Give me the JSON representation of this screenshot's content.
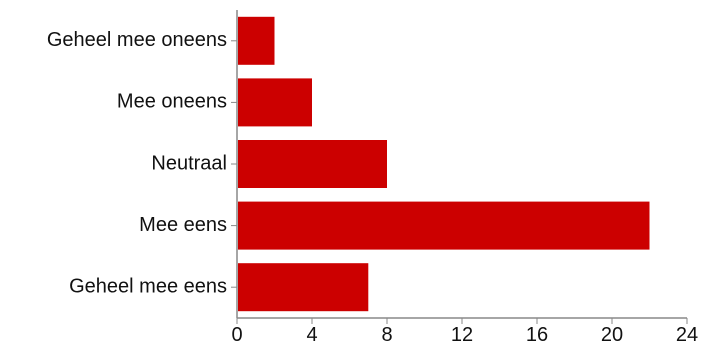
{
  "chart_data": {
    "type": "bar",
    "orientation": "horizontal",
    "categories": [
      "Geheel mee oneens",
      "Mee oneens",
      "Neutraal",
      "Mee eens",
      "Geheel mee eens"
    ],
    "values": [
      2,
      4,
      8,
      22,
      7
    ],
    "xlim": [
      0,
      24
    ],
    "xticks": [
      "0",
      "4",
      "8",
      "12",
      "16",
      "20",
      "24"
    ],
    "grid": false,
    "bar_color": "#cc0000",
    "axis_color": "#888888"
  }
}
